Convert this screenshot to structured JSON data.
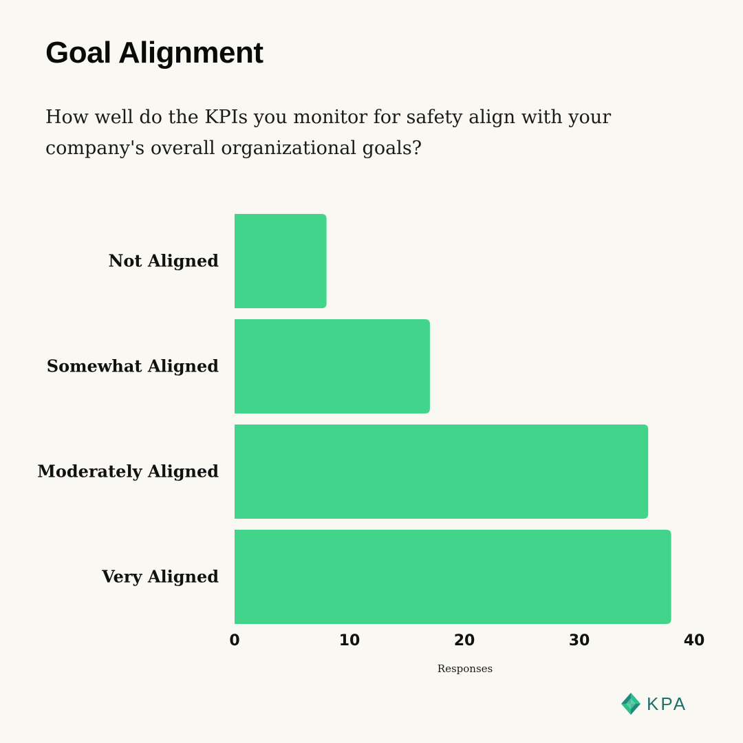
{
  "title": "Goal Alignment",
  "subtitle": "How well do the KPIs you monitor for safety align with your company's overall organizational goals?",
  "colors": {
    "background": "#f9f8f3",
    "bar": "#42d48a",
    "text": "#111111",
    "logo_teal": "#1f6f6a",
    "logo_green": "#2fbf8f"
  },
  "logo": {
    "icon": "kpa-diamond-logo-icon",
    "text": "KPA"
  },
  "chart_data": {
    "type": "bar",
    "orientation": "horizontal",
    "categories": [
      "Not Aligned",
      "Somewhat Aligned",
      "Moderately Aligned",
      "Very Aligned"
    ],
    "values": [
      8,
      17,
      36,
      38
    ],
    "title": "Goal Alignment",
    "xlabel": "Responses",
    "ylabel": "",
    "xlim": [
      0,
      40
    ],
    "xticks": [
      0,
      10,
      20,
      30,
      40
    ],
    "grid": false,
    "legend": "none"
  }
}
